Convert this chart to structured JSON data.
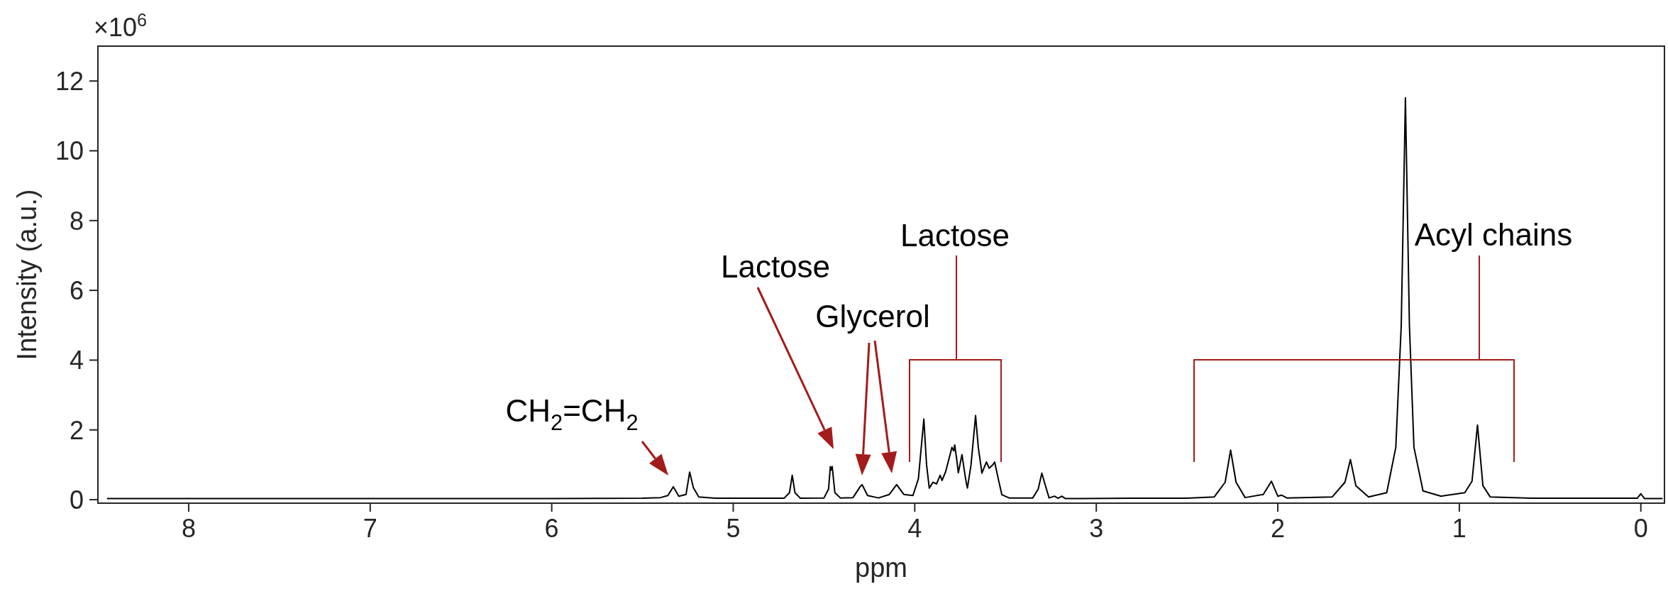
{
  "chart_data": {
    "type": "line",
    "xlabel": "ppm",
    "ylabel": "Intensity (a.u.)",
    "xlim": [
      8.5,
      -0.13
    ],
    "xticks": [
      8,
      7,
      6,
      5,
      4,
      3,
      2,
      1,
      0
    ],
    "ylim": [
      -0.1,
      13
    ],
    "yticks": [
      0,
      2,
      4,
      6,
      8,
      10,
      12
    ],
    "x": [
      8.45,
      6.0,
      5.5,
      5.4,
      5.36,
      5.33,
      5.3,
      5.26,
      5.24,
      5.22,
      5.19,
      5.1,
      4.72,
      4.69,
      4.675,
      4.66,
      4.63,
      4.5,
      4.475,
      4.465,
      4.46,
      4.455,
      4.44,
      4.41,
      4.34,
      4.3,
      4.29,
      4.26,
      4.2,
      4.14,
      4.1,
      4.06,
      4.01,
      3.98,
      3.95,
      3.935,
      3.92,
      3.9,
      3.88,
      3.86,
      3.85,
      3.83,
      3.81,
      3.795,
      3.785,
      3.78,
      3.77,
      3.76,
      3.74,
      3.72,
      3.71,
      3.69,
      3.665,
      3.65,
      3.63,
      3.605,
      3.59,
      3.57,
      3.56,
      3.54,
      3.52,
      3.48,
      3.35,
      3.32,
      3.3,
      3.28,
      3.26,
      3.23,
      3.21,
      3.19,
      3.17,
      2.8,
      2.5,
      2.35,
      2.29,
      2.26,
      2.23,
      2.18,
      2.08,
      2.035,
      2.0,
      1.98,
      1.95,
      1.7,
      1.63,
      1.6,
      1.57,
      1.5,
      1.4,
      1.35,
      1.32,
      1.297,
      1.275,
      1.25,
      1.2,
      1.1,
      0.97,
      0.93,
      0.9,
      0.87,
      0.83,
      0.6,
      0.02,
      0.0,
      -0.02,
      -0.12
    ],
    "series": [
      {
        "color": "#000000",
        "values": [
          0.03,
          0.03,
          0.04,
          0.06,
          0.12,
          0.37,
          0.1,
          0.15,
          0.79,
          0.35,
          0.08,
          0.04,
          0.04,
          0.2,
          0.7,
          0.2,
          0.04,
          0.05,
          0.3,
          0.95,
          0.85,
          0.95,
          0.2,
          0.05,
          0.06,
          0.38,
          0.43,
          0.12,
          0.05,
          0.15,
          0.43,
          0.15,
          0.12,
          0.6,
          2.31,
          1.0,
          0.33,
          0.5,
          0.45,
          0.7,
          0.55,
          0.8,
          1.2,
          1.5,
          1.4,
          1.57,
          1.2,
          0.77,
          1.29,
          0.6,
          0.33,
          1.0,
          2.41,
          1.5,
          0.76,
          1.08,
          0.9,
          1.0,
          1.08,
          0.6,
          0.14,
          0.05,
          0.05,
          0.3,
          0.76,
          0.4,
          0.05,
          0.1,
          0.04,
          0.1,
          0.03,
          0.04,
          0.04,
          0.08,
          0.5,
          1.42,
          0.5,
          0.06,
          0.15,
          0.53,
          0.1,
          0.13,
          0.05,
          0.08,
          0.5,
          1.15,
          0.4,
          0.08,
          0.2,
          1.5,
          5.0,
          11.52,
          5.0,
          1.5,
          0.25,
          0.1,
          0.2,
          0.53,
          2.14,
          0.4,
          0.08,
          0.04,
          0.04,
          0.17,
          0.03,
          0.03
        ]
      }
    ],
    "annotations": [
      "×10$^{6}$",
      "CH$_{2}$=CH$_{2}$",
      "Lactose",
      "Glycerol",
      "Lactose",
      "Acyl chains"
    ]
  }
}
